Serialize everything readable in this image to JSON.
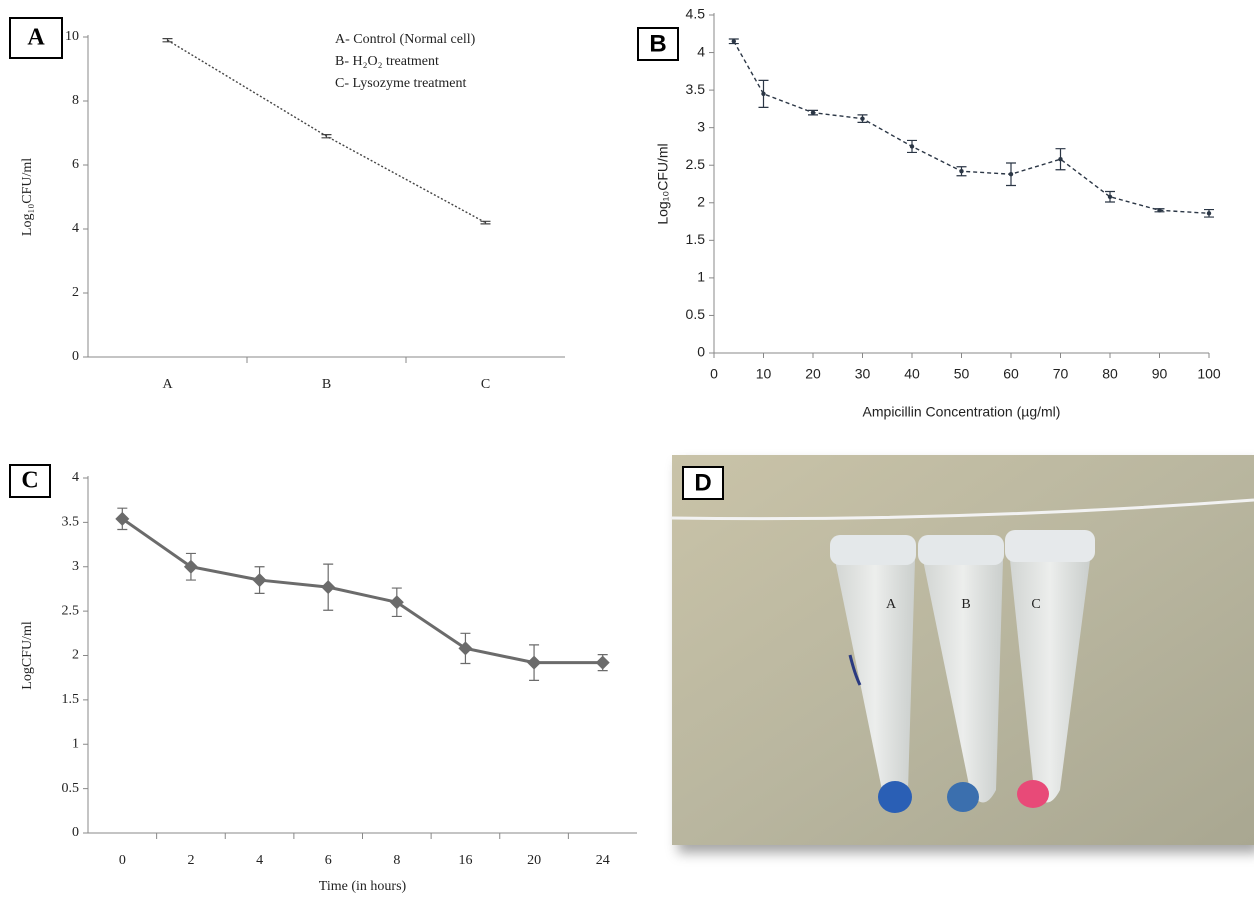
{
  "chart_data": [
    {
      "type": "line",
      "panel_label": "A",
      "categories": [
        "A",
        "B",
        "C"
      ],
      "series": [
        {
          "color": "#444444",
          "values": [
            9.9,
            6.9,
            4.2
          ],
          "errors": [
            0.05,
            0.05,
            0.04
          ]
        }
      ],
      "line_style": "dotted",
      "marker": "none",
      "ylabel": "Log₁₀CFU/ml",
      "ylim": [
        0,
        10
      ],
      "yticks": [
        0,
        2,
        4,
        6,
        8,
        10
      ],
      "notes": [
        "A- Control (Normal cell)",
        "B- H₂O₂ treatment",
        "C- Lysozyme treatment"
      ]
    },
    {
      "type": "line",
      "panel_label": "B",
      "x": [
        4,
        10,
        20,
        30,
        40,
        50,
        60,
        70,
        80,
        90,
        100
      ],
      "series": [
        {
          "color": "#2b3645",
          "values": [
            4.15,
            3.45,
            3.2,
            3.12,
            2.75,
            2.42,
            2.38,
            2.58,
            2.08,
            1.9,
            1.86
          ],
          "errors": [
            0.03,
            0.18,
            0.03,
            0.05,
            0.08,
            0.06,
            0.15,
            0.14,
            0.07,
            0.02,
            0.05
          ]
        }
      ],
      "line_style": "dashed",
      "marker": "dot",
      "xlabel": "Ampicillin Concentration (µg/ml)",
      "ylabel": "Log₁₀CFU/ml",
      "xlim": [
        0,
        100
      ],
      "xticks": [
        0,
        10,
        20,
        30,
        40,
        50,
        60,
        70,
        80,
        90,
        100
      ],
      "ylim": [
        0,
        4.5
      ],
      "yticks": [
        0,
        0.5,
        1,
        1.5,
        2,
        2.5,
        3,
        3.5,
        4,
        4.5
      ]
    },
    {
      "type": "line",
      "panel_label": "C",
      "categories": [
        "0",
        "2",
        "4",
        "6",
        "8",
        "16",
        "20",
        "24"
      ],
      "series": [
        {
          "color": "#6b6b6b",
          "values": [
            3.54,
            3.0,
            2.85,
            2.77,
            2.6,
            2.08,
            1.92,
            1.92
          ],
          "errors": [
            0.12,
            0.15,
            0.15,
            0.26,
            0.16,
            0.17,
            0.2,
            0.09
          ]
        }
      ],
      "line_style": "solid",
      "marker": "diamond",
      "xlabel": "Time (in hours)",
      "ylabel": "LogCFU/ml",
      "ylim": [
        0,
        4
      ],
      "yticks": [
        0,
        0.5,
        1,
        1.5,
        2,
        2.5,
        3,
        3.5,
        4
      ]
    }
  ],
  "photo": {
    "panel_label": "D",
    "tube_labels": [
      "A",
      "B",
      "C"
    ]
  }
}
